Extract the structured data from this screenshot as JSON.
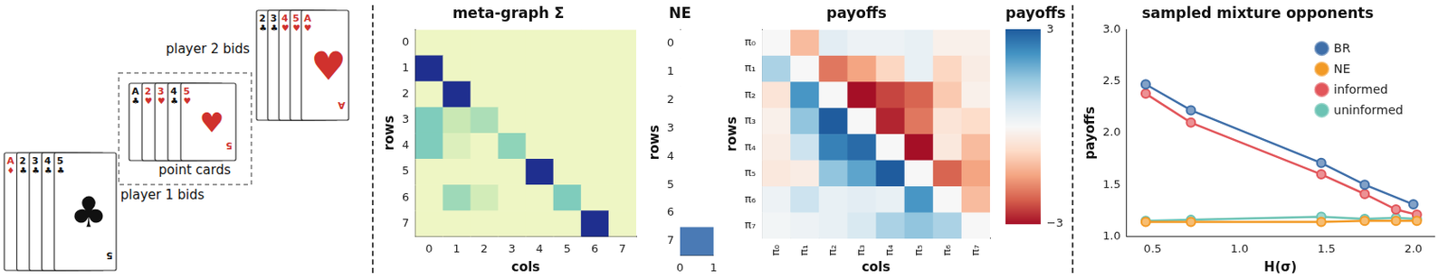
{
  "diagram": {
    "groups": [
      {
        "label": "player 1 bids",
        "cards": [
          {
            "rank": "A",
            "suit": "♦"
          },
          {
            "rank": "2",
            "suit": "♣"
          },
          {
            "rank": "3",
            "suit": "♣"
          },
          {
            "rank": "4",
            "suit": "♣"
          },
          {
            "rank": "5",
            "suit": "♣"
          }
        ]
      },
      {
        "label": "point cards",
        "cards": [
          {
            "rank": "A",
            "suit": "♣"
          },
          {
            "rank": "2",
            "suit": "♥"
          },
          {
            "rank": "3",
            "suit": "♥"
          },
          {
            "rank": "4",
            "suit": "♣"
          },
          {
            "rank": "5",
            "suit": "♥"
          }
        ]
      },
      {
        "label": "player 2 bids",
        "cards": [
          {
            "rank": "2",
            "suit": "♣"
          },
          {
            "rank": "3",
            "suit": "♣"
          },
          {
            "rank": "4",
            "suit": "♥"
          },
          {
            "rank": "5",
            "suit": "♥"
          },
          {
            "rank": "A",
            "suit": "♥"
          }
        ]
      }
    ]
  },
  "chart_data": [
    {
      "type": "heatmap",
      "title": "meta-graph Σ",
      "x_label": "cols",
      "y_label": "rows",
      "color": "YlGnBu",
      "xlim": [
        -0.5,
        7.5
      ],
      "ylim": [
        -0.5,
        7.5
      ],
      "xticks": [
        0,
        1,
        2,
        3,
        4,
        5,
        6,
        7
      ],
      "yticks": [
        0,
        1,
        2,
        3,
        4,
        5,
        6,
        7
      ],
      "z": [
        [
          0,
          0,
          0,
          0,
          0,
          0,
          0,
          0
        ],
        [
          1,
          0,
          0,
          0,
          0,
          0,
          0,
          0
        ],
        [
          0,
          1,
          0,
          0,
          0,
          0,
          0,
          0
        ],
        [
          0.45,
          0.2,
          0.3,
          0,
          0,
          0,
          0,
          0
        ],
        [
          0.45,
          0.1,
          0,
          0.4,
          0,
          0,
          0,
          0
        ],
        [
          0,
          0,
          0,
          0,
          1,
          0,
          0,
          0
        ],
        [
          0,
          0.35,
          0.15,
          0,
          0,
          0.45,
          0,
          0
        ],
        [
          0,
          0,
          0,
          0,
          0,
          0,
          1,
          0
        ]
      ]
    },
    {
      "type": "heatmap",
      "title": "NE",
      "y_label": "rows",
      "color": "#4a7ab5",
      "xlim": [
        0,
        1
      ],
      "ylim": [
        -0.5,
        7.5
      ],
      "xticks": [
        0,
        1
      ],
      "yticks": [
        0,
        1,
        2,
        3,
        4,
        5,
        6,
        7
      ],
      "z": [
        [
          0
        ],
        [
          0
        ],
        [
          0
        ],
        [
          0
        ],
        [
          0
        ],
        [
          0
        ],
        [
          0
        ],
        [
          1
        ]
      ]
    },
    {
      "type": "heatmap",
      "title": "payoffs",
      "x_label": "cols",
      "y_label": "rows",
      "color": "RdBu",
      "xlim": [
        -0.5,
        7.5
      ],
      "ylim": [
        -0.5,
        7.5
      ],
      "xticks": [
        {
          "value": 0,
          "label": "π₀"
        },
        {
          "value": 1,
          "label": "π₁"
        },
        {
          "value": 2,
          "label": "π₂"
        },
        {
          "value": 3,
          "label": "π₃"
        },
        {
          "value": 4,
          "label": "π₄"
        },
        {
          "value": 5,
          "label": "π₅"
        },
        {
          "value": 6,
          "label": "π₆"
        },
        {
          "value": 7,
          "label": "π₇"
        }
      ],
      "yticks": [
        {
          "value": 0,
          "label": "π₀"
        },
        {
          "value": 1,
          "label": "π₁"
        },
        {
          "value": 2,
          "label": "π₂"
        },
        {
          "value": 3,
          "label": "π₃"
        },
        {
          "value": 4,
          "label": "π₄"
        },
        {
          "value": 5,
          "label": "π₅"
        },
        {
          "value": 6,
          "label": "π₆"
        },
        {
          "value": 7,
          "label": "π₇"
        }
      ],
      "z": [
        [
          0,
          -1.2,
          0.4,
          0.2,
          0.2,
          0.3,
          -0.2,
          -0.2
        ],
        [
          1.2,
          0,
          -2,
          -1.5,
          -0.8,
          0.3,
          -0.8,
          -0.3
        ],
        [
          -0.5,
          2.2,
          0,
          -3,
          -2.5,
          -2.2,
          -1,
          -0.2
        ],
        [
          -0.2,
          1.5,
          3,
          0,
          -2.8,
          -2,
          -0.5,
          -0.7
        ],
        [
          -0.3,
          0.8,
          2.5,
          2.8,
          0,
          -3,
          -0.4,
          -1.2
        ],
        [
          -0.4,
          -0.3,
          1.5,
          2,
          3,
          0,
          -2.2,
          -1.5
        ],
        [
          0.2,
          0.8,
          0.3,
          0.4,
          0.3,
          2.2,
          0,
          -1.2
        ],
        [
          0.1,
          0.2,
          0.3,
          0.6,
          1.2,
          1.5,
          1.2,
          0
        ]
      ],
      "colorbar": {
        "title": "payoffs",
        "range": [
          -3,
          3
        ],
        "ticks": [
          3,
          {
            "value": -3,
            "label": "−3"
          }
        ]
      }
    },
    {
      "type": "line",
      "title": "sampled mixture opponents",
      "x_label": "H(σ)",
      "y_label": "payoffs",
      "xlim": [
        0.35,
        2.12
      ],
      "ylim": [
        1.0,
        3.0
      ],
      "xticks": [
        0.5,
        {
          "value": 1,
          "label": "1.0"
        },
        1.5,
        {
          "value": 2,
          "label": "2.0"
        }
      ],
      "yticks": [
        {
          "value": 1,
          "label": "1.0"
        },
        1.5,
        {
          "value": 2,
          "label": "2.0"
        },
        2.5,
        {
          "value": 3,
          "label": "3.0"
        }
      ],
      "grid": false,
      "legend": "upper right",
      "marker": "circle",
      "line_style": "solid",
      "series": [
        {
          "name": "BR",
          "color": "#3f6fa9",
          "x": [
            0.46,
            0.72,
            1.47,
            1.72,
            2.0
          ],
          "values": [
            2.47,
            2.22,
            1.71,
            1.5,
            1.31
          ]
        },
        {
          "name": "NE",
          "color": "#f29a26",
          "x": [
            0.46,
            0.72,
            1.47,
            1.72,
            1.9,
            2.02
          ],
          "values": [
            1.14,
            1.14,
            1.14,
            1.15,
            1.15,
            1.15
          ]
        },
        {
          "name": "informed",
          "color": "#e2555a",
          "x": [
            0.46,
            0.72,
            1.47,
            1.72,
            1.9,
            2.02
          ],
          "values": [
            2.38,
            2.1,
            1.6,
            1.41,
            1.26,
            1.21
          ]
        },
        {
          "name": "uninformed",
          "color": "#6cc3b4",
          "x": [
            0.46,
            0.72,
            1.47,
            1.72,
            1.9,
            2.02
          ],
          "values": [
            1.15,
            1.16,
            1.19,
            1.17,
            1.18,
            1.17
          ]
        }
      ]
    }
  ]
}
